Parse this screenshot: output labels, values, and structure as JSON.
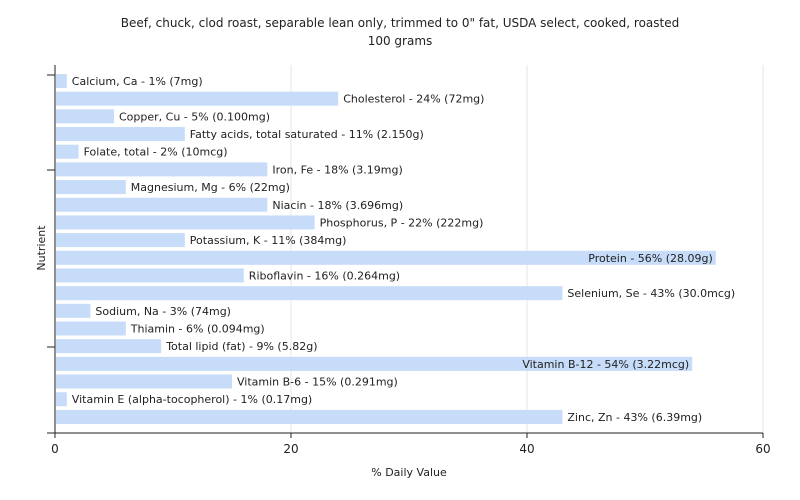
{
  "chart_data": {
    "type": "bar",
    "orientation": "horizontal",
    "title": "Beef, chuck, clod roast, separable lean only, trimmed to 0\" fat, USDA select, cooked, roasted",
    "subtitle": "100 grams",
    "xlabel": "% Daily Value",
    "ylabel": "Nutrient",
    "xlim": [
      0,
      60
    ],
    "xticks": [
      "0",
      "20",
      "40",
      "60"
    ],
    "grid": true,
    "bar_color": "#c6dcf8",
    "categories": [
      "Calcium, Ca",
      "Cholesterol",
      "Copper, Cu",
      "Fatty acids, total saturated",
      "Folate, total",
      "Iron, Fe",
      "Magnesium, Mg",
      "Niacin",
      "Phosphorus, P",
      "Potassium, K",
      "Protein",
      "Riboflavin",
      "Selenium, Se",
      "Sodium, Na",
      "Thiamin",
      "Total lipid (fat)",
      "Vitamin B-12",
      "Vitamin B-6",
      "Vitamin E (alpha-tocopherol)",
      "Zinc, Zn"
    ],
    "values": [
      1,
      24,
      5,
      11,
      2,
      18,
      6,
      18,
      22,
      11,
      56,
      16,
      43,
      3,
      6,
      9,
      54,
      15,
      1,
      43
    ],
    "labels": [
      "Calcium, Ca - 1% (7mg)",
      "Cholesterol - 24% (72mg)",
      "Copper, Cu - 5% (0.100mg)",
      "Fatty acids, total saturated - 11% (2.150g)",
      "Folate, total - 2% (10mcg)",
      "Iron, Fe - 18% (3.19mg)",
      "Magnesium, Mg - 6% (22mg)",
      "Niacin - 18% (3.696mg)",
      "Phosphorus, P - 22% (222mg)",
      "Potassium, K - 11% (384mg)",
      "Protein - 56% (28.09g)",
      "Riboflavin - 16% (0.264mg)",
      "Selenium, Se - 43% (30.0mcg)",
      "Sodium, Na - 3% (74mg)",
      "Thiamin - 6% (0.094mg)",
      "Total lipid (fat) - 9% (5.82g)",
      "Vitamin B-12 - 54% (3.22mcg)",
      "Vitamin B-6 - 15% (0.291mg)",
      "Vitamin E (alpha-tocopherol) - 1% (0.17mg)",
      "Zinc, Zn - 43% (6.39mg)"
    ]
  }
}
